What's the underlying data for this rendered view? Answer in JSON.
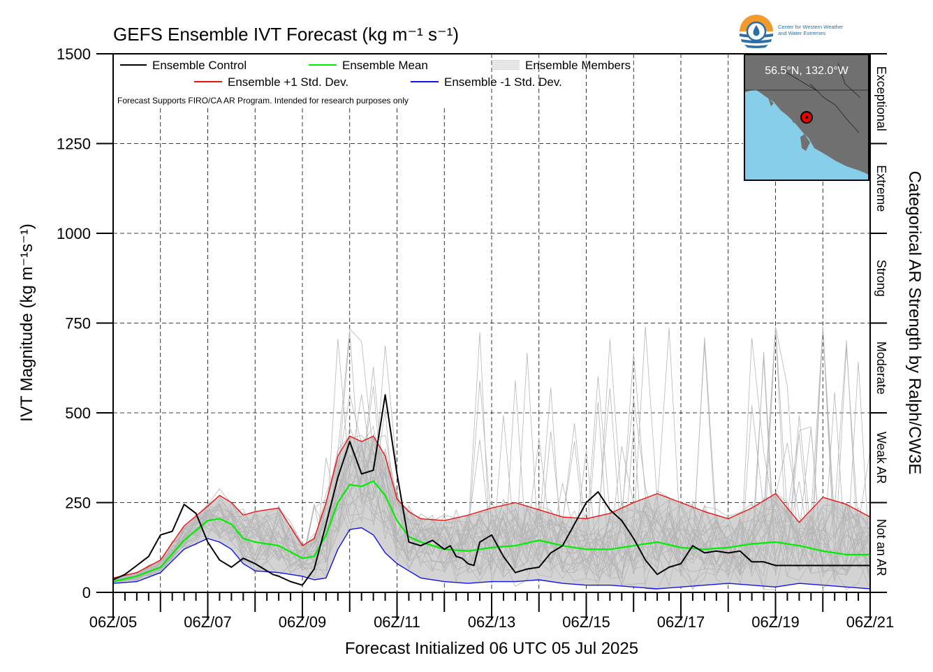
{
  "chart_data": {
    "type": "line",
    "title": "GEFS Ensemble IVT Forecast (kg m⁻¹ s⁻¹)",
    "ylabel": "IVT Magnitude (kg m⁻¹s⁻¹)",
    "xlabel": "Forecast Initialized 06 UTC 05 Jul 2025",
    "right_label": "Categorical AR Strength by Ralph/CW3E",
    "note": "Forecast Supports FIRO/CA AR Program. Intended for research purposes only",
    "ylim": [
      0,
      1500
    ],
    "xlim_hours": [
      0,
      384
    ],
    "y_ticks": [
      0,
      250,
      500,
      750,
      1000,
      1250,
      1500
    ],
    "y_tick_labels": [
      "0",
      "250",
      "500",
      "750",
      "1000",
      "1250",
      "1500"
    ],
    "x_tick_labels": [
      "06Z/05",
      "06Z/07",
      "06Z/09",
      "06Z/11",
      "06Z/13",
      "06Z/15",
      "06Z/17",
      "06Z/19",
      "06Z/21"
    ],
    "grid": true,
    "legend_placement": "top-left",
    "legend": [
      {
        "label": "Ensemble Control",
        "color": "#000000",
        "style": "single"
      },
      {
        "label": "Ensemble Mean",
        "color": "#00ee00",
        "style": "single"
      },
      {
        "label": "Ensemble Members",
        "color": "#b0b0b0",
        "style": "multi"
      },
      {
        "label": "Ensemble +1 Std. Dev.",
        "color": "#ee1111",
        "style": "single"
      },
      {
        "label": "Ensemble -1 Std. Dev.",
        "color": "#1111ee",
        "style": "single"
      }
    ],
    "categories": [
      {
        "label": "Exceptional",
        "range": [
          1250,
          1500
        ]
      },
      {
        "label": "Extreme",
        "range": [
          1000,
          1250
        ]
      },
      {
        "label": "Strong",
        "range": [
          750,
          1000
        ]
      },
      {
        "label": "Moderate",
        "range": [
          500,
          750
        ]
      },
      {
        "label": "Weak AR",
        "range": [
          250,
          500
        ]
      },
      {
        "label": "Not an AR",
        "range": [
          0,
          250
        ]
      }
    ],
    "series": [
      {
        "name": "Ensemble Control",
        "color": "#000000",
        "x": [
          0,
          6,
          12,
          18,
          24,
          30,
          36,
          42,
          48,
          54,
          60,
          66,
          72,
          75,
          78,
          81,
          84,
          90,
          96,
          102,
          108,
          114,
          120,
          126,
          132,
          138,
          144,
          150,
          156,
          162,
          168,
          171,
          174,
          177,
          180,
          183,
          186,
          192,
          198,
          204,
          210,
          216,
          222,
          228,
          234,
          240,
          246,
          252,
          258,
          264,
          270,
          276,
          282,
          288,
          294,
          300,
          306,
          312,
          318,
          324,
          330,
          336,
          342,
          348,
          354,
          360,
          366,
          372,
          378,
          384
        ],
        "y": [
          35,
          50,
          75,
          100,
          160,
          170,
          245,
          220,
          140,
          90,
          70,
          95,
          80,
          70,
          60,
          50,
          45,
          30,
          20,
          65,
          190,
          320,
          420,
          330,
          340,
          550,
          330,
          140,
          130,
          145,
          120,
          130,
          100,
          95,
          80,
          75,
          140,
          160,
          100,
          55,
          65,
          70,
          110,
          130,
          190,
          250,
          280,
          230,
          200,
          150,
          90,
          50,
          70,
          80,
          130,
          110,
          115,
          110,
          115,
          85,
          85,
          75,
          75,
          75,
          75,
          75,
          75,
          75,
          75,
          75
        ]
      },
      {
        "name": "Ensemble Mean",
        "color": "#00ee00",
        "x": [
          0,
          12,
          24,
          36,
          48,
          54,
          60,
          66,
          72,
          84,
          96,
          102,
          108,
          114,
          120,
          126,
          132,
          138,
          144,
          150,
          156,
          168,
          180,
          192,
          204,
          216,
          228,
          240,
          252,
          264,
          276,
          288,
          300,
          312,
          324,
          336,
          348,
          360,
          372,
          384
        ],
        "y": [
          30,
          45,
          70,
          145,
          200,
          205,
          190,
          150,
          140,
          130,
          95,
          100,
          160,
          250,
          300,
          295,
          310,
          270,
          200,
          155,
          140,
          120,
          115,
          125,
          130,
          145,
          130,
          120,
          120,
          130,
          140,
          125,
          120,
          125,
          135,
          140,
          130,
          115,
          105,
          105
        ]
      },
      {
        "name": "Ensemble +1 Std. Dev.",
        "color": "#ee1111",
        "x": [
          0,
          12,
          24,
          36,
          48,
          54,
          60,
          66,
          72,
          84,
          96,
          102,
          108,
          114,
          120,
          126,
          132,
          138,
          144,
          150,
          156,
          168,
          180,
          192,
          204,
          216,
          228,
          240,
          252,
          264,
          276,
          288,
          300,
          312,
          324,
          336,
          348,
          360,
          372,
          384
        ],
        "y": [
          40,
          55,
          90,
          185,
          240,
          270,
          250,
          215,
          225,
          235,
          130,
          150,
          250,
          380,
          435,
          420,
          435,
          380,
          260,
          225,
          205,
          200,
          215,
          235,
          250,
          230,
          210,
          205,
          220,
          250,
          275,
          250,
          225,
          205,
          235,
          275,
          195,
          265,
          245,
          210
        ]
      },
      {
        "name": "Ensemble -1 Std. Dev.",
        "color": "#1111ee",
        "x": [
          0,
          12,
          24,
          36,
          48,
          54,
          60,
          66,
          72,
          84,
          96,
          102,
          108,
          114,
          120,
          126,
          132,
          138,
          144,
          150,
          156,
          168,
          180,
          192,
          204,
          216,
          228,
          240,
          252,
          264,
          276,
          288,
          300,
          312,
          324,
          336,
          348,
          360,
          372,
          384
        ],
        "y": [
          25,
          30,
          55,
          120,
          150,
          140,
          120,
          80,
          60,
          55,
          45,
          35,
          40,
          120,
          175,
          180,
          160,
          110,
          80,
          60,
          40,
          30,
          25,
          30,
          30,
          35,
          25,
          20,
          20,
          15,
          10,
          15,
          20,
          25,
          20,
          15,
          25,
          20,
          15,
          10
        ]
      }
    ]
  },
  "inset": {
    "location": "56.5°N, 132.0°W",
    "lat": 56.5,
    "lon": -132.0,
    "ocean_color": "#87ceeb",
    "land_color": "#707070"
  },
  "logo": {
    "line1": "Center for Western Weather",
    "line2": "and Water Extremes"
  },
  "colors": {
    "spread_fill": "#d3d3d3",
    "members": "#b5b5b5"
  }
}
